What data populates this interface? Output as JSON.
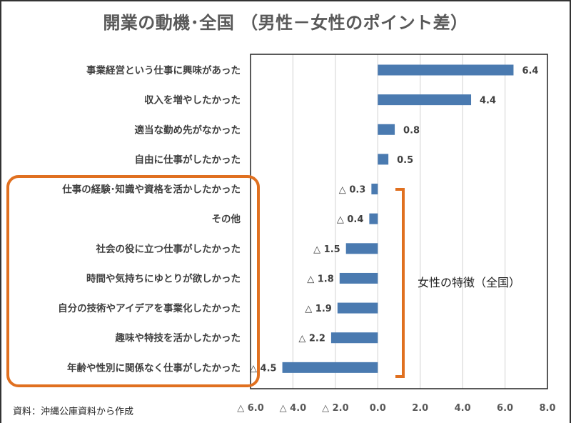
{
  "chart_data": {
    "type": "bar",
    "orientation": "horizontal",
    "title": "開業の動機･全国 （男性－女性のポイント差）",
    "categories": [
      "事業経営という仕事に興味があった",
      "収入を増やしたかった",
      "適当な勤め先がなかった",
      "自由に仕事がしたかった",
      "仕事の経験･知識や資格を活かしたかった",
      "その他",
      "社会の役に立つ仕事がしたかった",
      "時間や気持ちにゆとりが欲しかった",
      "自分の技術やアイデアを事業化したかった",
      "趣味や特技を活かしたかった",
      "年齢や性別に関係なく仕事がしたかった"
    ],
    "values": [
      6.4,
      4.4,
      0.8,
      0.5,
      -0.3,
      -0.4,
      -1.5,
      -1.8,
      -1.9,
      -2.2,
      -4.5
    ],
    "value_labels": [
      "6.4",
      "4.4",
      "0.8",
      "0.5",
      "△ 0.3",
      "△ 0.4",
      "△ 1.5",
      "△ 1.8",
      "△ 1.9",
      "△ 2.2",
      "△ 4.5"
    ],
    "xlim": [
      -6,
      8
    ],
    "x_ticks": [
      -6,
      -4,
      -2,
      0,
      2,
      4,
      6,
      8
    ],
    "x_tick_labels": [
      "△ 6.0",
      "△ 4.0",
      "△ 2.0",
      "0.0",
      "2.0",
      "4.0",
      "6.0",
      "8.0"
    ],
    "grid": true,
    "bar_color": "#4a7ab0",
    "highlight_color": "#e07020",
    "annotation": "女性の特徴（全国）",
    "source": "資料：沖縄公庫資料から作成"
  }
}
